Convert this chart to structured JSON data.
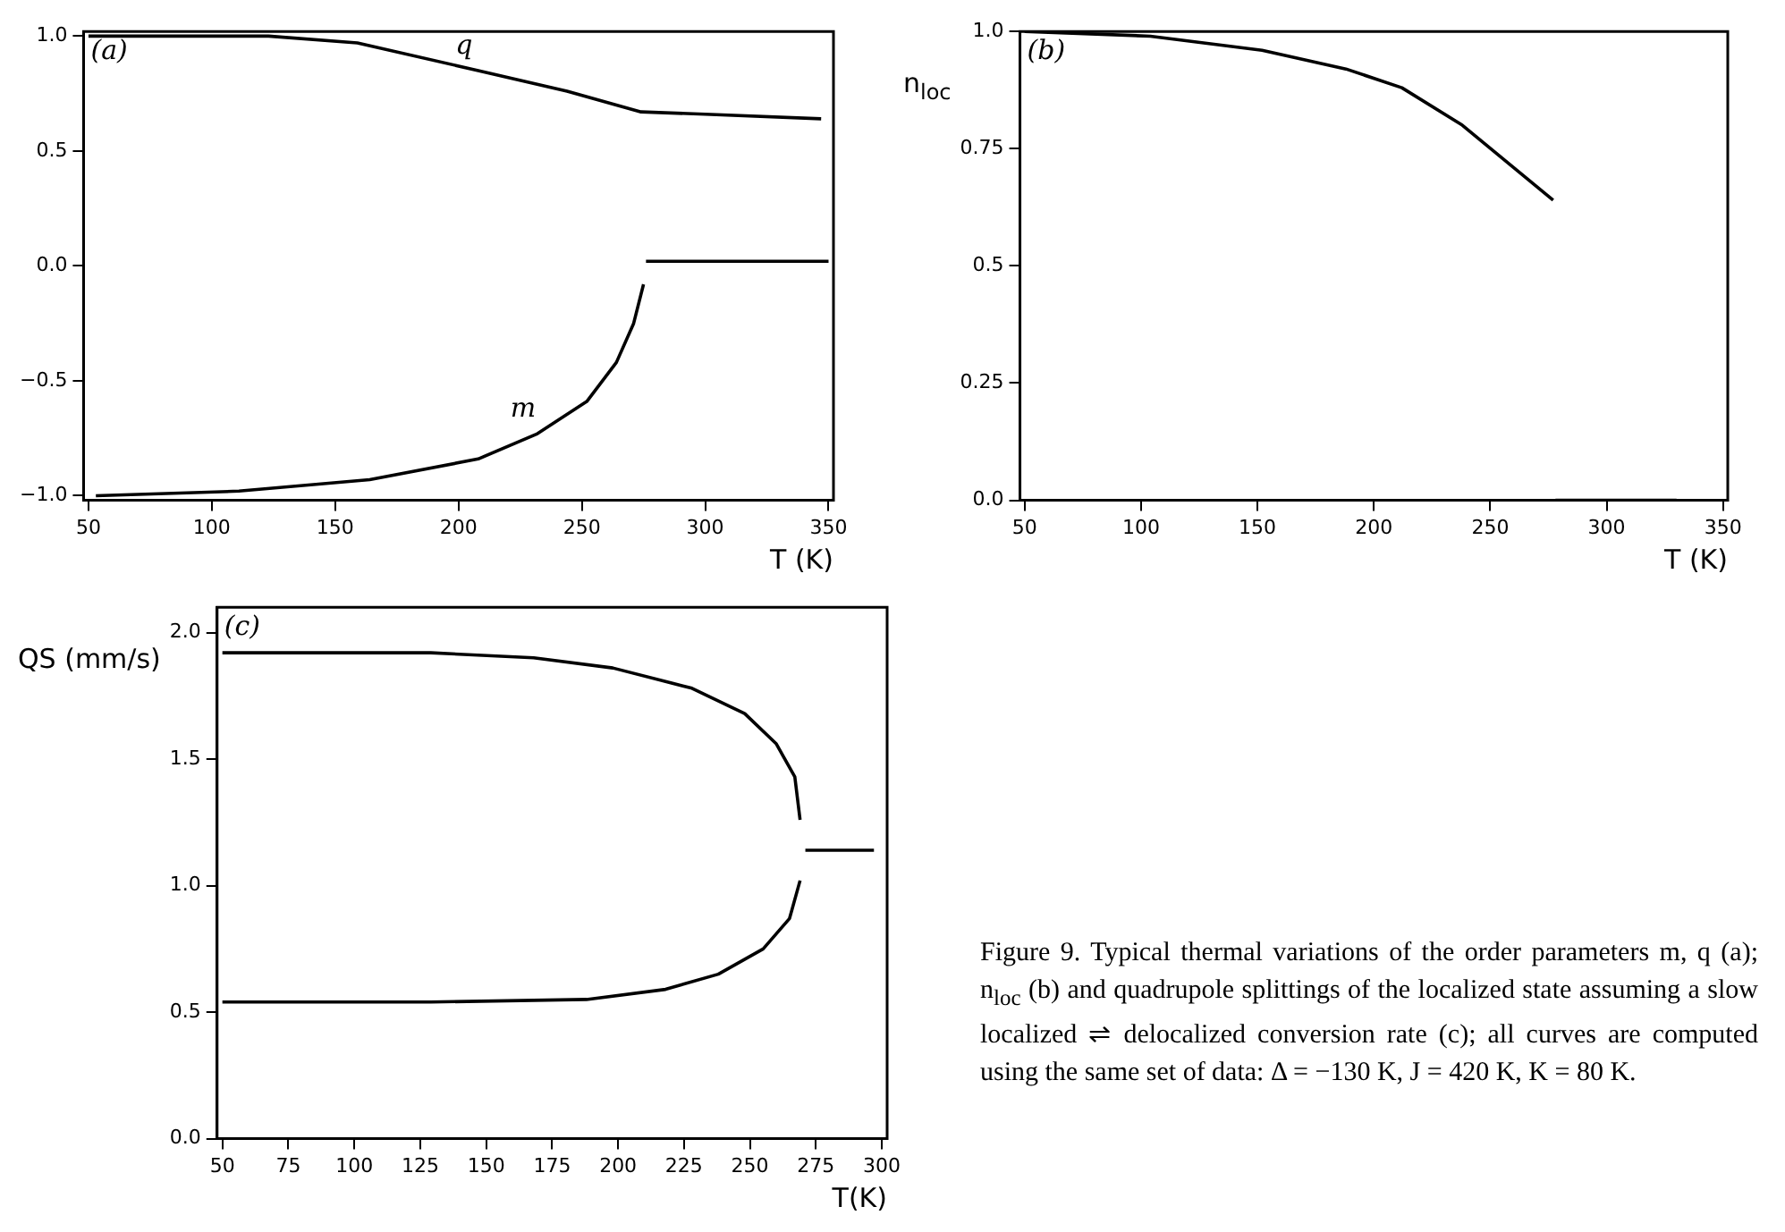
{
  "chart_data": [
    {
      "type": "line",
      "xlabel": "T (K)",
      "xlim": [
        48,
        352
      ],
      "ylim": [
        -1.02,
        1.02
      ],
      "xticks": [
        50,
        100,
        150,
        200,
        250,
        300,
        350
      ],
      "yticks": [
        {
          "value": -1,
          "label": "−1.0"
        },
        {
          "value": -0.5,
          "label": "−0.5"
        },
        {
          "value": 0,
          "label": "0.0"
        },
        {
          "value": 0.5,
          "label": "0.5"
        },
        {
          "value": 1,
          "label": "1.0"
        }
      ],
      "grid": false,
      "legend": false,
      "marker": "none",
      "line_style": "solid",
      "annotations": [
        "(a)"
      ],
      "series": [
        {
          "name": "q",
          "color": "#000000",
          "x": [
            50,
            100,
            123,
            159,
            208,
            244,
            274,
            300,
            347
          ],
          "values": [
            1.0,
            1.0,
            1.0,
            0.97,
            0.85,
            0.76,
            0.67,
            0.66,
            0.64
          ]
        },
        {
          "name": "m",
          "color": "#000000",
          "x": [
            53,
            111,
            164,
            208,
            232,
            252,
            264,
            271,
            275
          ],
          "values": [
            -1.0,
            -0.98,
            -0.93,
            -0.84,
            -0.73,
            -0.59,
            -0.42,
            -0.25,
            -0.08
          ]
        },
        {
          "color": "#000000",
          "x": [
            276,
            350
          ],
          "values": [
            0.02,
            0.02
          ]
        }
      ]
    },
    {
      "type": "line",
      "xlabel": "T (K)",
      "ylabel": "n$_{loc}$",
      "xlim": [
        48,
        352
      ],
      "ylim": [
        0,
        1.0
      ],
      "xticks": [
        50,
        100,
        150,
        200,
        250,
        300,
        350
      ],
      "yticks": [
        {
          "value": 0,
          "label": "0.0"
        },
        0.25,
        0.5,
        0.75,
        {
          "value": 1,
          "label": "1.0"
        }
      ],
      "grid": false,
      "legend": false,
      "marker": "none",
      "line_style": "solid",
      "annotations": [
        "(b)"
      ],
      "series": [
        {
          "color": "#000000",
          "x": [
            50,
            104,
            152,
            188,
            212,
            238,
            260,
            277
          ],
          "values": [
            1.0,
            0.99,
            0.96,
            0.92,
            0.88,
            0.8,
            0.71,
            0.64
          ]
        },
        {
          "color": "#000000",
          "x": [
            278,
            330
          ],
          "values": [
            0,
            0
          ]
        }
      ]
    },
    {
      "type": "line",
      "xlabel": "T(K)",
      "ylabel": "QS (mm/s)",
      "xlim": [
        48,
        302
      ],
      "ylim": [
        0,
        2.1
      ],
      "xticks": [
        50,
        75,
        100,
        125,
        150,
        175,
        200,
        225,
        250,
        275,
        300
      ],
      "yticks": [
        {
          "value": 0,
          "label": "0.0"
        },
        0.5,
        {
          "value": 1,
          "label": "1.0"
        },
        1.5,
        {
          "value": 2,
          "label": "2.0"
        }
      ],
      "grid": false,
      "legend": false,
      "marker": "none",
      "line_style": "solid",
      "annotations": [
        "(c)"
      ],
      "series": [
        {
          "color": "#000000",
          "x": [
            50,
            129,
            168,
            198,
            228,
            248,
            260,
            267,
            269
          ],
          "values": [
            1.92,
            1.92,
            1.9,
            1.86,
            1.78,
            1.68,
            1.56,
            1.43,
            1.26
          ]
        },
        {
          "color": "#000000",
          "x": [
            50,
            129,
            188,
            218,
            238,
            255,
            265,
            269
          ],
          "values": [
            0.54,
            0.54,
            0.55,
            0.59,
            0.65,
            0.75,
            0.87,
            1.02
          ]
        },
        {
          "color": "#000000",
          "x": [
            271,
            297
          ],
          "values": [
            1.14,
            1.14
          ]
        }
      ]
    },
    {
      "type": "other",
      "annotations": [
        "Figure 9. Typical thermal variations of the order parameters m, q (a); n$_{loc}$ (b) and quadrupole splittings of the localized state assuming a slow localized ⇌ delocalized conversion rate (c); all curves are computed using the same set of data: Δ = −130 K, J = 420 K, K = 80 K."
      ]
    }
  ]
}
